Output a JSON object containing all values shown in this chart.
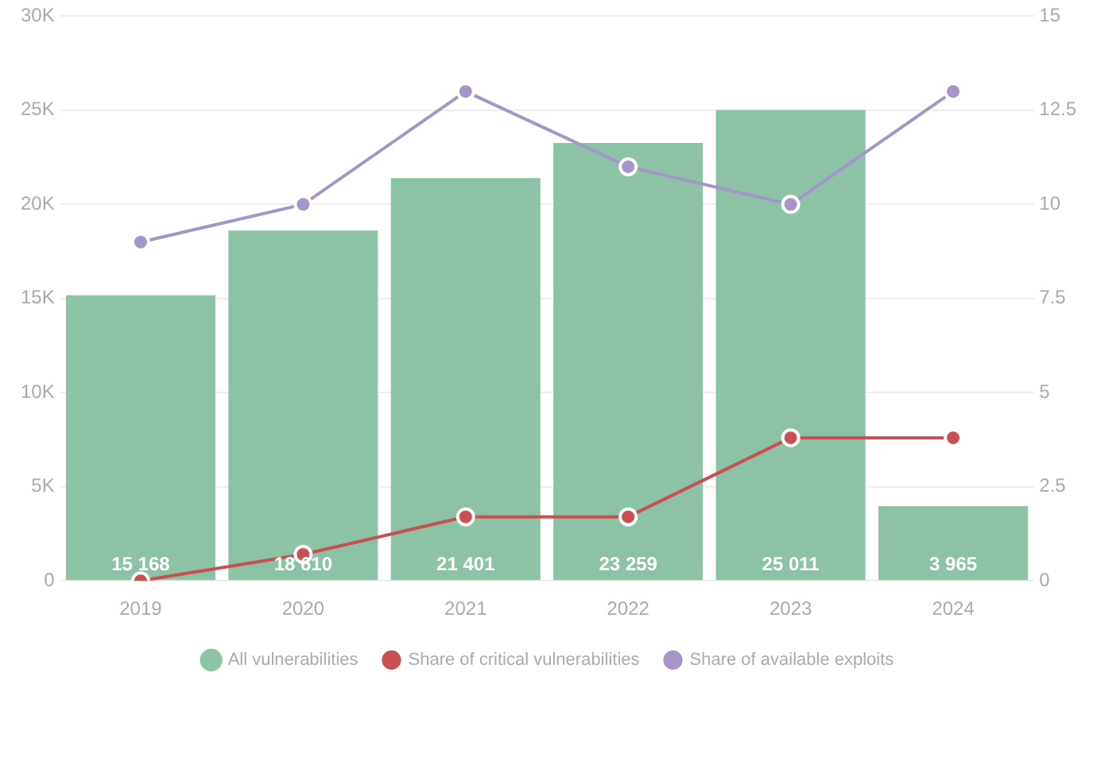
{
  "chart_data": {
    "type": "bar",
    "categories": [
      "2019",
      "2020",
      "2021",
      "2022",
      "2023",
      "2024"
    ],
    "series": [
      {
        "name": "All vulnerabilities",
        "color": "#8cc2a6",
        "values": [
          15168,
          18610,
          21401,
          23259,
          25011,
          3965
        ],
        "value_labels": [
          "15 168",
          "18 610",
          "21 401",
          "23 259",
          "25 011",
          "3 965"
        ]
      },
      {
        "name": "Share of critical vulnerabilities",
        "type": "line",
        "axis": "y2",
        "color": "#c85050",
        "values": [
          0,
          0.7,
          1.7,
          1.7,
          3.8,
          3.8
        ]
      },
      {
        "name": "Share of available exploits",
        "type": "line",
        "axis": "y2",
        "color": "#a595c8",
        "values": [
          9,
          10,
          13,
          11,
          10,
          13
        ]
      }
    ],
    "ylim": [
      0,
      30000
    ],
    "yticks": [
      {
        "value": 0,
        "label": "0"
      },
      {
        "value": 5000,
        "label": "5K"
      },
      {
        "value": 10000,
        "label": "10K"
      },
      {
        "value": 15000,
        "label": "15K"
      },
      {
        "value": 20000,
        "label": "20K"
      },
      {
        "value": 25000,
        "label": "25K"
      },
      {
        "value": 30000,
        "label": "30K"
      }
    ],
    "y2lim": [
      0,
      15
    ],
    "y2ticks": [
      0,
      2.5,
      5,
      7.5,
      10,
      12.5,
      15
    ],
    "grid": "y",
    "legend": "bottom",
    "marker": "circle",
    "line_style": "solid"
  }
}
